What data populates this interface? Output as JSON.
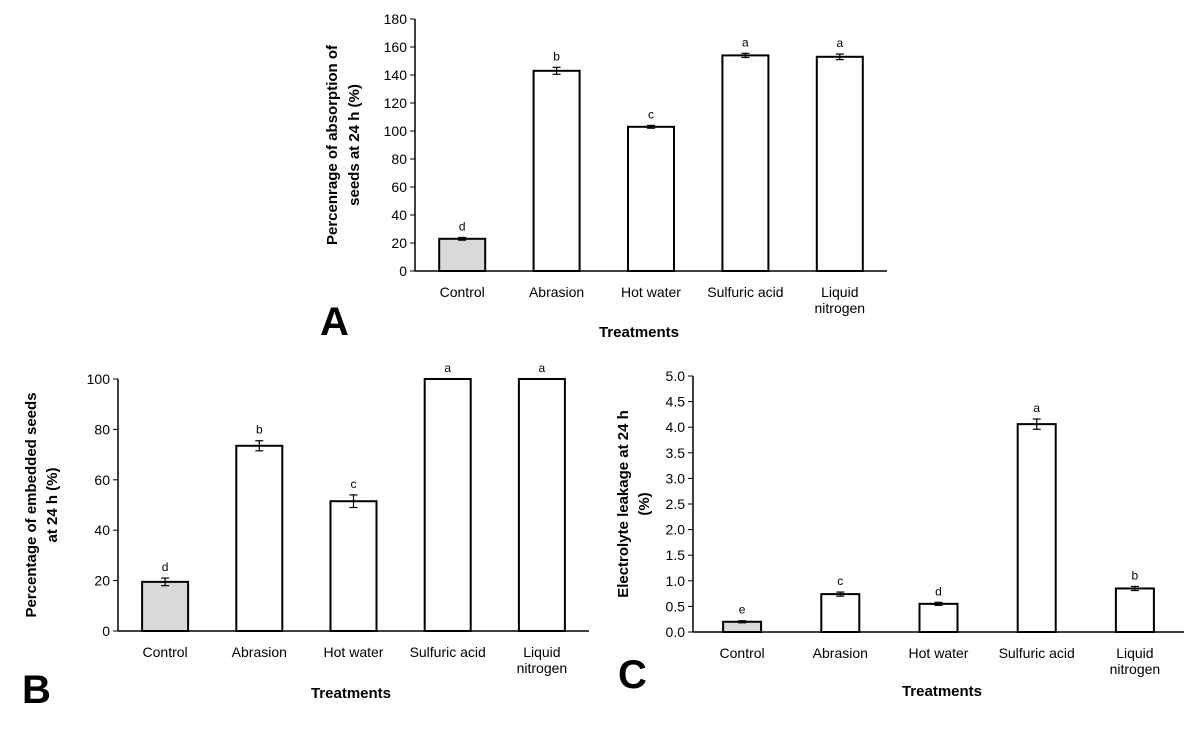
{
  "colors": {
    "control_fill": "#d9d9d9",
    "bar_fill": "#ffffff",
    "stroke": "#000000"
  },
  "chart_data": [
    {
      "panel": "A",
      "type": "bar",
      "title": "",
      "xlabel": "Treatments",
      "ylabel_lines": [
        "Percenrage of absorption of",
        "seeds at 24 h (%)"
      ],
      "categories": [
        [
          "Control"
        ],
        [
          "Abrasion"
        ],
        [
          "Hot water"
        ],
        [
          "Sulfuric acid"
        ],
        [
          "Liquid",
          "nitrogen"
        ]
      ],
      "values": [
        23,
        143,
        103,
        154,
        153
      ],
      "errors": [
        1,
        2.5,
        1,
        1.5,
        2
      ],
      "letters": [
        "d",
        "b",
        "c",
        "a",
        "a"
      ],
      "ylim": [
        0,
        180
      ],
      "yticks": [
        0,
        20,
        40,
        60,
        80,
        100,
        120,
        140,
        160,
        180
      ],
      "ytick_decimals": 0
    },
    {
      "panel": "B",
      "type": "bar",
      "title": "",
      "xlabel": "Treatments",
      "ylabel_lines": [
        "Percentage of embedded seeds",
        "at 24 h (%)"
      ],
      "categories": [
        [
          "Control"
        ],
        [
          "Abrasion"
        ],
        [
          "Hot water"
        ],
        [
          "Sulfuric acid"
        ],
        [
          "Liquid",
          "nitrogen"
        ]
      ],
      "values": [
        19.5,
        73.5,
        51.5,
        100,
        100
      ],
      "errors": [
        1.5,
        2,
        2.5,
        0,
        0
      ],
      "letters": [
        "d",
        "b",
        "c",
        "a",
        "a"
      ],
      "ylim": [
        0,
        100
      ],
      "yticks": [
        0,
        20,
        40,
        60,
        80,
        100
      ],
      "ytick_decimals": 0
    },
    {
      "panel": "C",
      "type": "bar",
      "title": "",
      "xlabel": "Treatments",
      "ylabel_lines": [
        "Electrolyte leakage at 24 h",
        "(%)"
      ],
      "categories": [
        [
          "Control"
        ],
        [
          "Abrasion"
        ],
        [
          "Hot water"
        ],
        [
          "Sulfuric acid"
        ],
        [
          "Liquid",
          "nitrogen"
        ]
      ],
      "values": [
        0.2,
        0.74,
        0.55,
        4.06,
        0.85
      ],
      "errors": [
        0.02,
        0.04,
        0.03,
        0.1,
        0.04
      ],
      "letters": [
        "e",
        "c",
        "d",
        "a",
        "b"
      ],
      "ylim": [
        0,
        5
      ],
      "yticks": [
        0,
        0.5,
        1,
        1.5,
        2,
        2.5,
        3,
        3.5,
        4,
        4.5,
        5
      ],
      "ytick_decimals": 1
    }
  ]
}
